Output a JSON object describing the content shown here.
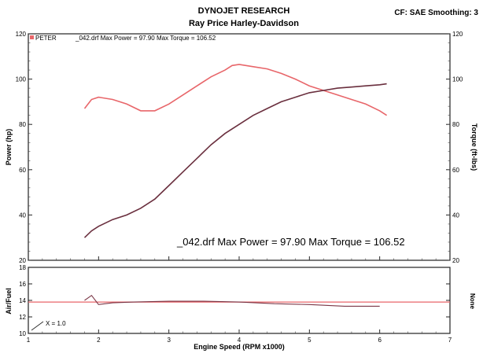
{
  "header": {
    "title": "DYNOJET RESEARCH",
    "subtitle": "Ray Price Harley-Davidson",
    "settings": "CF: SAE  Smoothing: 3"
  },
  "legend": {
    "run_name": "PETER",
    "run_stats": "_042.drf Max Power = 97.90    Max Torque = 106.52"
  },
  "annotation": "_042.drf Max Power = 97.90    Max Torque = 106.52",
  "xmarker": "X = 1.0",
  "colors": {
    "power": "#6a2f3e",
    "torque": "#e8666a",
    "af_ref": "#e8666a",
    "af": "#7a3646",
    "frame": "#222222"
  },
  "chart_data": [
    {
      "type": "line",
      "xlabel": "Engine Speed (RPM x1000)",
      "ylabel": "Power (hp)",
      "y2label": "Torque (ft-lbs)",
      "xlim": [
        1,
        7
      ],
      "ylim": [
        20,
        120
      ],
      "y2lim": [
        20,
        120
      ],
      "xticks": [
        "1",
        "2",
        "3",
        "4",
        "5",
        "6",
        "7"
      ],
      "yticks": [
        "20",
        "40",
        "60",
        "80",
        "100",
        "120"
      ],
      "y2ticks": [
        "20",
        "40",
        "60",
        "80",
        "100",
        "120"
      ],
      "grid": false,
      "series": [
        {
          "name": "Power",
          "x": [
            1.8,
            1.9,
            2.0,
            2.2,
            2.4,
            2.6,
            2.8,
            3.0,
            3.2,
            3.4,
            3.6,
            3.8,
            4.0,
            4.2,
            4.4,
            4.6,
            4.8,
            5.0,
            5.2,
            5.4,
            5.6,
            5.8,
            6.0,
            6.1
          ],
          "values": [
            30,
            33,
            35,
            38,
            40,
            43,
            47,
            53,
            59,
            65,
            71,
            76,
            80,
            84,
            87,
            90,
            92,
            94,
            95,
            96,
            96.5,
            97,
            97.5,
            97.9
          ]
        },
        {
          "name": "Torque",
          "x": [
            1.8,
            1.9,
            2.0,
            2.2,
            2.4,
            2.6,
            2.8,
            3.0,
            3.2,
            3.4,
            3.6,
            3.8,
            3.9,
            4.0,
            4.2,
            4.4,
            4.6,
            4.8,
            5.0,
            5.2,
            5.4,
            5.6,
            5.8,
            6.0,
            6.1
          ],
          "values": [
            87,
            91,
            92,
            91,
            89,
            86,
            86,
            89,
            93,
            97,
            101,
            104,
            106,
            106.5,
            105.5,
            104.5,
            102.5,
            100,
            97,
            95,
            93,
            91,
            89,
            86,
            84
          ]
        }
      ]
    },
    {
      "type": "line",
      "ylabel": "Air/Fuel",
      "y2label": "None",
      "xlim": [
        1,
        7
      ],
      "ylim": [
        10,
        18
      ],
      "yticks": [
        "10",
        "12",
        "14",
        "16",
        "18"
      ],
      "xticks": [
        "1",
        "2",
        "3",
        "4",
        "5",
        "6",
        "7"
      ],
      "reference": 13.8,
      "series": [
        {
          "name": "Air/Fuel",
          "x": [
            1.8,
            1.9,
            2.0,
            2.2,
            2.5,
            3.0,
            3.5,
            4.0,
            4.5,
            5.0,
            5.5,
            6.0
          ],
          "values": [
            14.0,
            14.6,
            13.5,
            13.7,
            13.8,
            13.9,
            13.9,
            13.8,
            13.6,
            13.5,
            13.3,
            13.3
          ]
        }
      ]
    }
  ]
}
